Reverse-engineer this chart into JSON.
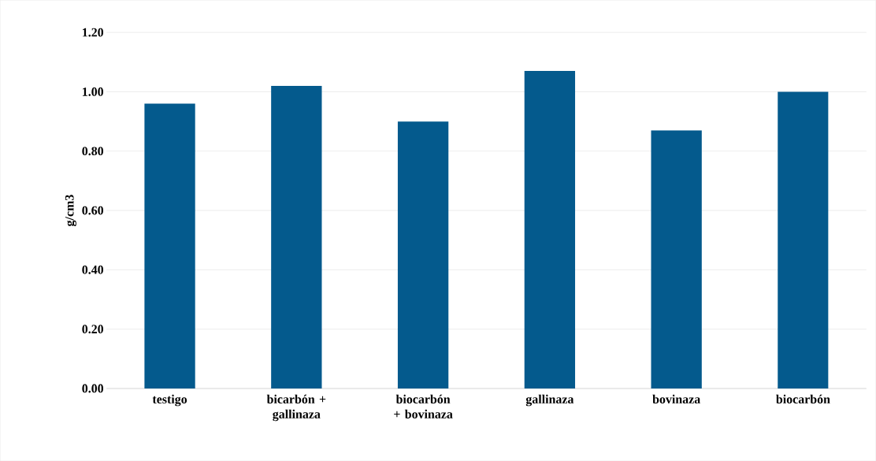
{
  "chart_data": {
    "type": "bar",
    "ylabel": "g/cm3",
    "categories": [
      "testigo",
      "bicarbón + gallinaza",
      "biocarbón + bovinaza",
      "gallinaza",
      "bovinaza",
      "biocarbón"
    ],
    "values": [
      0.96,
      1.02,
      0.9,
      1.07,
      0.87,
      1.0
    ],
    "color": "#045a8d",
    "ylim": [
      0,
      1.2
    ],
    "yticks": [
      {
        "value": 0,
        "label": "0.00"
      },
      {
        "value": 0.2,
        "label": "0.20"
      },
      {
        "value": 0.4,
        "label": "0.40"
      },
      {
        "value": 0.6,
        "label": "0.60"
      },
      {
        "value": 0.8,
        "label": "0.80"
      },
      {
        "value": 1.0,
        "label": "1.00"
      },
      {
        "value": 1.2,
        "label": "1.20"
      }
    ],
    "grid": "y"
  }
}
